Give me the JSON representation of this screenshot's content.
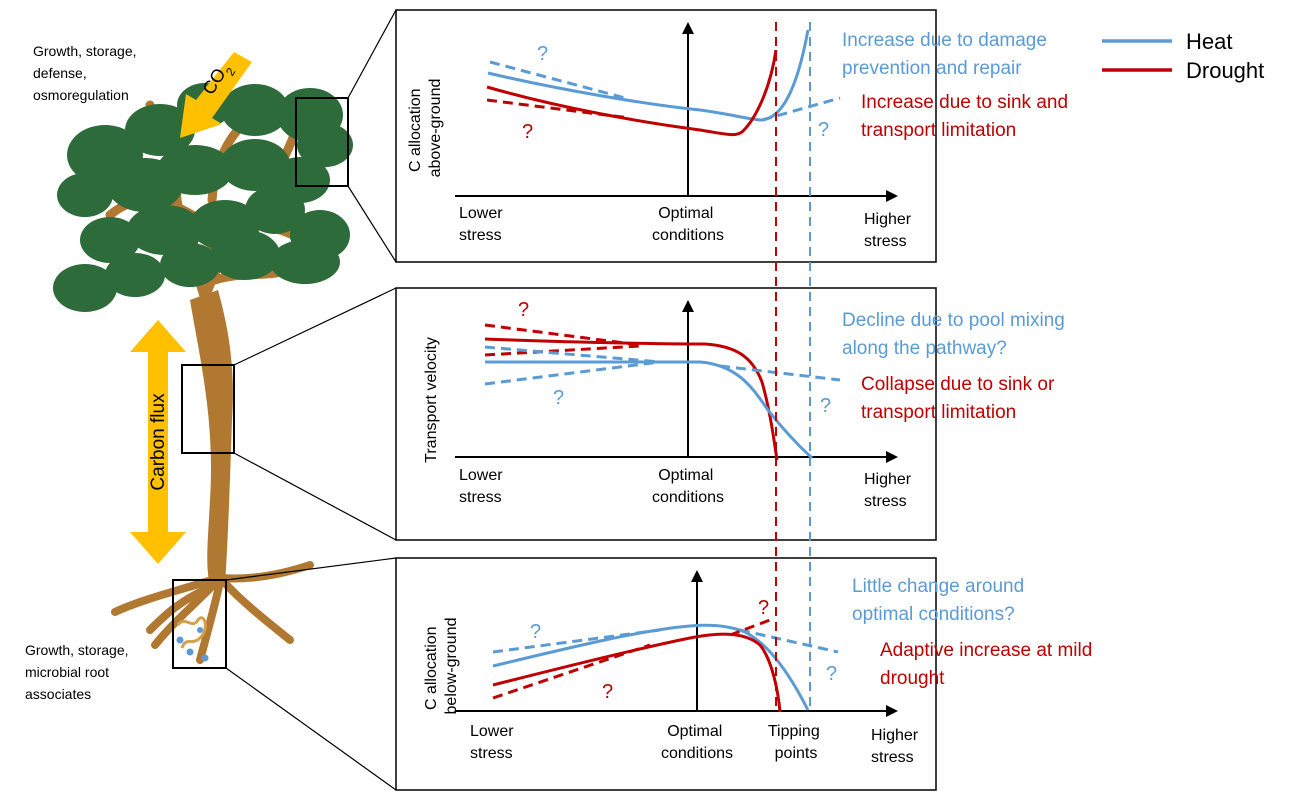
{
  "colors": {
    "heat": "#5B9BD5",
    "drought": "#C00000",
    "foliage": "#2E6B3A",
    "trunk": "#B07830",
    "arrow": "#FFC000",
    "axis": "#000000"
  },
  "legend": {
    "heat": "Heat",
    "drought": "Drought"
  },
  "tree": {
    "top_label": [
      "Growth, storage,",
      "defense,",
      "osmoregulation"
    ],
    "bottom_label": [
      "Growth, storage,",
      "microbial root",
      "associates"
    ],
    "co2_label": "CO",
    "co2_subscript": "2",
    "flux_label": "Carbon flux"
  },
  "panels": [
    {
      "id": "above",
      "ylabel": [
        "C allocation",
        "above-ground"
      ],
      "x_left": [
        "Lower",
        "stress"
      ],
      "x_mid": [
        "Optimal",
        "conditions"
      ],
      "x_right": [
        "Higher",
        "stress"
      ],
      "heat_annotation": [
        "Increase due to damage",
        "prevention and repair"
      ],
      "drought_annotation": [
        "Increase due to sink and",
        "transport limitation"
      ],
      "question_mark": "?"
    },
    {
      "id": "transport",
      "ylabel": [
        "Transport velocity"
      ],
      "x_left": [
        "Lower",
        "stress"
      ],
      "x_mid": [
        "Optimal",
        "conditions"
      ],
      "x_right": [
        "Higher",
        "stress"
      ],
      "heat_annotation": [
        "Decline due to pool mixing",
        "along the pathway?"
      ],
      "drought_annotation": [
        "Collapse due to sink or",
        "transport limitation"
      ],
      "question_mark": "?"
    },
    {
      "id": "below",
      "ylabel": [
        "C allocation",
        "below-ground"
      ],
      "x_left": [
        "Lower",
        "stress"
      ],
      "x_mid": [
        "Optimal",
        "conditions"
      ],
      "x_tip": [
        "Tipping",
        "points"
      ],
      "x_right": [
        "Higher",
        "stress"
      ],
      "heat_annotation": [
        "Little change around",
        "optimal conditions?"
      ],
      "drought_annotation": [
        "Adaptive increase at mild",
        "drought"
      ],
      "question_mark": "?"
    }
  ]
}
